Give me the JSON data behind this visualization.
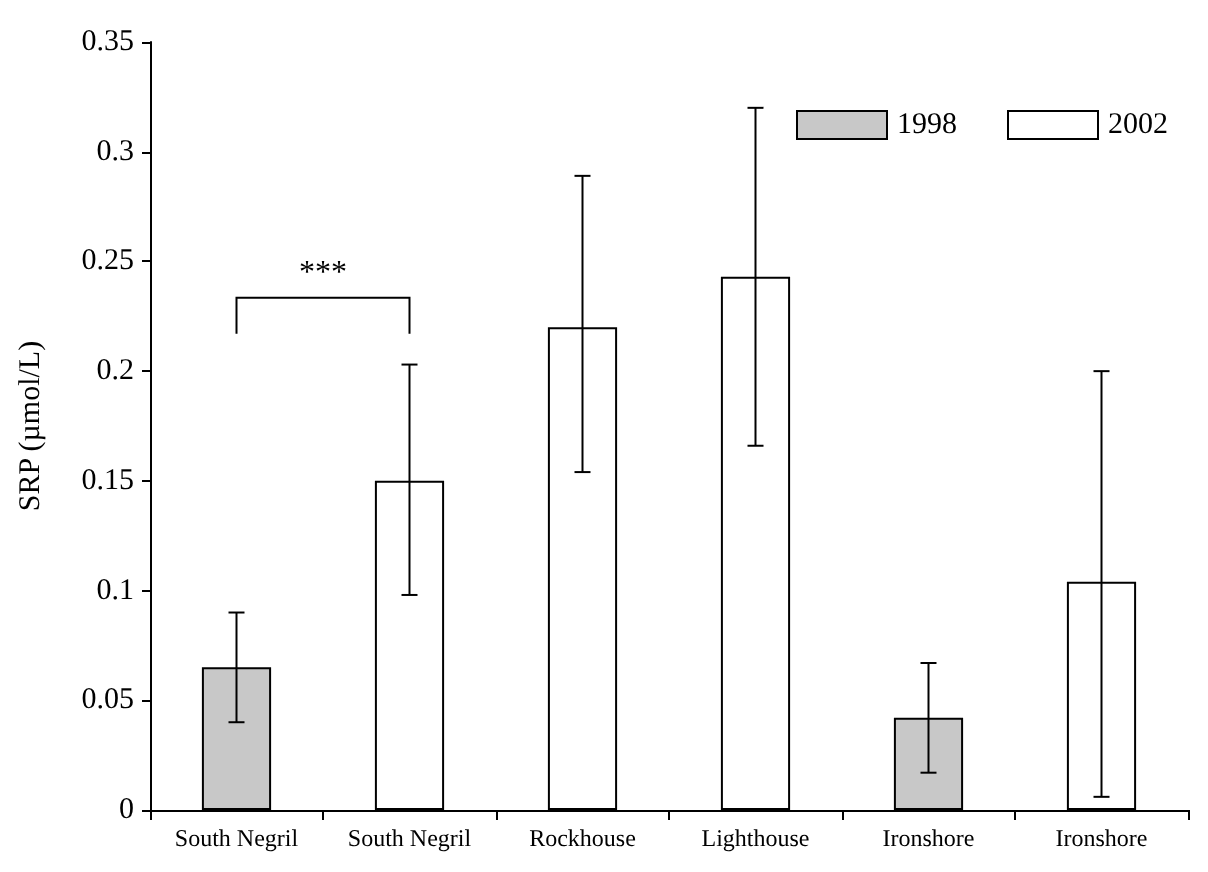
{
  "chart_data": {
    "type": "bar",
    "ylabel": "SRP (µmol/L)",
    "categories": [
      "South Negril",
      "South Negril",
      "Rockhouse",
      "Lighthouse",
      "Ironshore",
      "Ironshore"
    ],
    "series": [
      {
        "name": "1998",
        "color": "#c8c8c8",
        "values": [
          0.065,
          null,
          null,
          null,
          0.042,
          null
        ],
        "errors": [
          [
            0.04,
            0.09
          ],
          null,
          null,
          null,
          [
            0.017,
            0.067
          ],
          null
        ]
      },
      {
        "name": "2002",
        "color": "#ffffff",
        "values": [
          null,
          0.15,
          0.22,
          0.243,
          null,
          0.104
        ],
        "errors": [
          null,
          [
            0.098,
            0.203
          ],
          [
            0.154,
            0.289
          ],
          [
            0.166,
            0.32
          ],
          null,
          [
            0.006,
            0.2
          ]
        ]
      }
    ],
    "annotations": [
      "***"
    ],
    "ylim": [
      0,
      0.35
    ],
    "yticks": [
      0,
      0.05,
      0.1,
      0.15,
      0.2,
      0.25,
      0.3,
      0.35
    ],
    "grid": false,
    "legend": "top right"
  }
}
